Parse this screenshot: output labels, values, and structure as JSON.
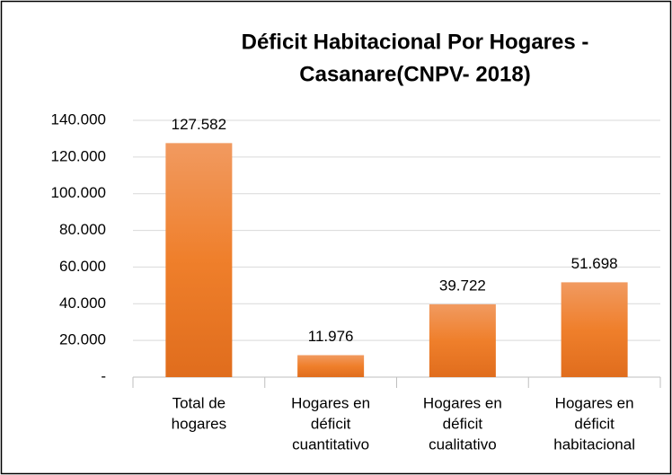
{
  "chart_data": {
    "type": "bar",
    "title": [
      "Déficit Habitacional Por Hogares -",
      "Casanare(CNPV- 2018)"
    ],
    "categories": [
      [
        "Total de",
        "hogares"
      ],
      [
        "Hogares en",
        "déficit",
        "cuantitativo"
      ],
      [
        "Hogares en",
        "déficit",
        "cualitativo"
      ],
      [
        "Hogares en",
        "déficit",
        "habitacional"
      ]
    ],
    "values": [
      127582,
      11976,
      39722,
      51698
    ],
    "value_labels": [
      "127.582",
      "11.976",
      "39.722",
      "51.698"
    ],
    "color": "#ed7d31",
    "ylim": [
      0,
      140000
    ],
    "yticks": [
      {
        "value": 0,
        "label": "-"
      },
      {
        "value": 20000,
        "label": "20.000"
      },
      {
        "value": 40000,
        "label": "40.000"
      },
      {
        "value": 60000,
        "label": "60.000"
      },
      {
        "value": 80000,
        "label": "80.000"
      },
      {
        "value": 100000,
        "label": "100.000"
      },
      {
        "value": 120000,
        "label": "120.000"
      },
      {
        "value": 140000,
        "label": "140.000"
      }
    ],
    "grid": true
  }
}
